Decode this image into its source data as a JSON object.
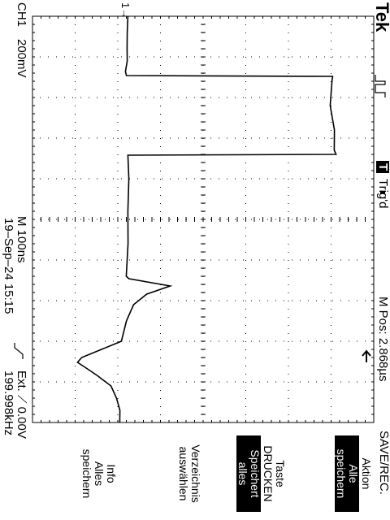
{
  "header": {
    "brand": "Tek",
    "trigger_badge": "T",
    "trigger_status": "Trig'd",
    "mpos": "M Pos: 2.868µs",
    "menu_title": "SAVE/REC."
  },
  "footer": {
    "channel": "CH1",
    "volts_div": "200mV",
    "time_div": "M 100ns",
    "trigger_info": "Ext. ⟋ 0.00V",
    "timestamp": "19–Sep–24 15:15",
    "frequency": "199.998kHz"
  },
  "markers": {
    "ch1_ground": "1→"
  },
  "menu": {
    "items": [
      {
        "line1": "Aktion",
        "selected_line1": "Alle",
        "selected_line2": "speichern"
      },
      {
        "line1": "Taste",
        "line2": "DRUCKEN",
        "selected_line1": "Speichert",
        "selected_line2": "alles"
      },
      {
        "line1": "Verzeichnis",
        "line2": "auswählen"
      },
      {
        "line1": "Info",
        "line2": "Alles",
        "line3": "speichern"
      }
    ]
  },
  "colors": {
    "background": "#ffffff",
    "trace": "#000000",
    "graticule": "#000000"
  },
  "icons": {
    "trigger_arrow": "trigger-position-arrow-icon",
    "trigger_slope": "rising-edge-icon"
  }
}
